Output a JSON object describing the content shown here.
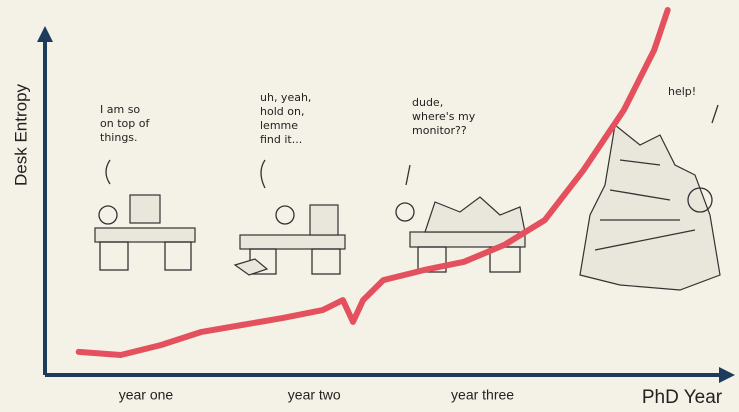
{
  "chart_data": {
    "type": "line",
    "x_label": "PhD Year",
    "y_label": "Desk Entropy",
    "xlim": [
      0.4,
      4.5
    ],
    "xticks": [
      {
        "value": 1,
        "label": "year one"
      },
      {
        "value": 2,
        "label": "year two"
      },
      {
        "value": 3,
        "label": "year three"
      }
    ],
    "ylim": [
      0,
      100
    ],
    "series": [
      {
        "color": "#e4505e",
        "x": [
          0.6,
          0.85,
          1.09,
          1.33,
          1.57,
          1.81,
          2.05,
          2.17,
          2.23,
          2.29,
          2.41,
          2.65,
          2.89,
          3.13,
          3.37,
          3.6,
          3.84,
          4.02,
          4.1
        ],
        "values": [
          6.7,
          5.8,
          8.7,
          12.5,
          14.5,
          16.5,
          18.8,
          21.7,
          15.4,
          21.7,
          27.5,
          30.4,
          32.8,
          37.7,
          44.9,
          59.4,
          76.8,
          94.2,
          105.8
        ]
      }
    ],
    "annotations": [
      {
        "lines": [
          "I am so",
          "on top of",
          "things."
        ]
      },
      {
        "lines": [
          "uh, yeah,",
          "hold on,",
          "lemme",
          "find it..."
        ]
      },
      {
        "lines": [
          "dude,",
          "where's my",
          "monitor??"
        ]
      },
      {
        "lines": [
          "help!"
        ]
      }
    ]
  }
}
